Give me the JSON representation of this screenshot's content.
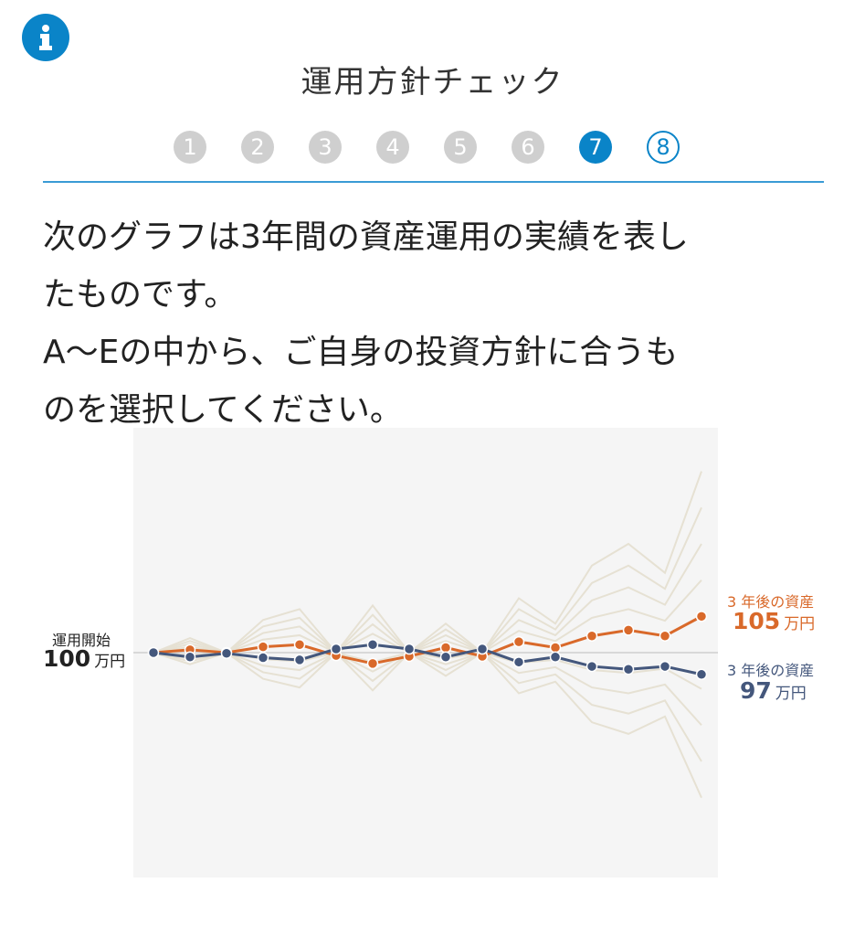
{
  "header": {
    "info_icon": "info-icon",
    "title": "運用方針チェック",
    "steps": [
      "1",
      "2",
      "3",
      "4",
      "5",
      "6",
      "7",
      "8"
    ],
    "current_step": 7,
    "accent_color": "#0a84c8"
  },
  "question": {
    "lines": [
      "次のグラフは3年間の資産運用の実績を表し",
      "たものです。",
      "A〜Eの中から、ご自身の投資方針に合うも",
      "のを選択してください。"
    ]
  },
  "chart_data": {
    "type": "line",
    "ylim": [
      69,
      131
    ],
    "baseline": 100,
    "grid": false,
    "start_label": {
      "caption": "運用開始",
      "value": "100",
      "unit": "万円"
    },
    "series": [
      {
        "color": "#d9692a",
        "end_caption": "3 年後の資産",
        "end_value": "105",
        "end_unit": "万円",
        "values": [
          100,
          100.4,
          100,
          100.8,
          101.1,
          99.6,
          98.5,
          99.5,
          100.7,
          99.5,
          101.5,
          100.7,
          102.3,
          103.1,
          102.3,
          105
        ]
      },
      {
        "color": "#44577c",
        "end_caption": "3 年後の資産",
        "end_value": "97",
        "end_unit": "万円",
        "values": [
          100,
          99.4,
          99.9,
          99.3,
          99.0,
          100.5,
          101.1,
          100.5,
          99.4,
          100.5,
          98.7,
          99.4,
          98.1,
          97.7,
          98.1,
          97
        ]
      }
    ],
    "background_color": "#e6e1d3",
    "background_series": [
      [
        100,
        102,
        100,
        104.5,
        106,
        100,
        106.5,
        100,
        104,
        100,
        107.5,
        104,
        112,
        115,
        111,
        125
      ],
      [
        100,
        101.6,
        100,
        103.6,
        104.8,
        100,
        105.2,
        100,
        103.2,
        100,
        106,
        103.2,
        109.6,
        112,
        108.8,
        120
      ],
      [
        100,
        101.2,
        100,
        102.7,
        103.6,
        100,
        103.9,
        100,
        102.4,
        100,
        104.5,
        102.4,
        107.2,
        109,
        106.6,
        115
      ],
      [
        100,
        100.8,
        100,
        101.8,
        102.4,
        100,
        102.6,
        100,
        101.6,
        100,
        103,
        101.6,
        104.8,
        106,
        104.4,
        110
      ],
      [
        100,
        99.6,
        100,
        99.1,
        98.8,
        100,
        98.7,
        100,
        99.2,
        100,
        98.6,
        99,
        97.6,
        97.2,
        97.8,
        95
      ],
      [
        100,
        99.2,
        100,
        98.2,
        97.6,
        100,
        97.4,
        100,
        98.4,
        100,
        97.2,
        98,
        95.2,
        94.4,
        95.6,
        90
      ],
      [
        100,
        98.8,
        100,
        97.3,
        96.4,
        100,
        96.1,
        100,
        97.6,
        100,
        95.8,
        97,
        92.8,
        91.6,
        93.4,
        85
      ],
      [
        100,
        98.4,
        100,
        96.4,
        95.2,
        100,
        94.8,
        100,
        96.8,
        100,
        94.4,
        96,
        90.4,
        88.8,
        91.2,
        80
      ]
    ]
  }
}
